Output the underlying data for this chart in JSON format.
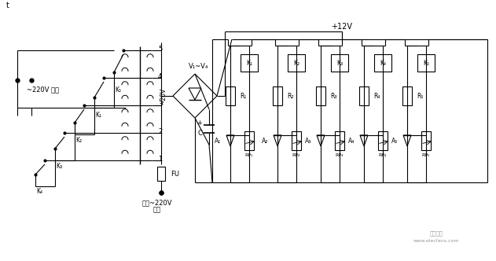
{
  "bg_color": "#ffffff",
  "fig_width": 6.31,
  "fig_height": 3.32,
  "dpi": 100,
  "watermark_line1": "时发发发",
  "watermark_line2": "www.elecfans.com",
  "label_plus12V": "+12V",
  "label_220V_out": "~220V 输出",
  "label_mains_line1": "市电~220V",
  "label_mains_line2": "输入",
  "label_FU": "FU",
  "label_C": "C",
  "label_20V": "~20V",
  "label_V1V4": "V₁~V₄",
  "relay_labels": [
    "K₁",
    "K₂",
    "K₃",
    "K₄",
    "K₅"
  ],
  "R_labels": [
    "R₁",
    "R₂",
    "R₃",
    "R₄",
    "R₅"
  ],
  "RP_labels": [
    "RP₁",
    "RP₂",
    "RP₃",
    "RP₄",
    "RP₅"
  ],
  "A_labels": [
    "A₁",
    "A₂",
    "A₃",
    "A₄",
    "A₅"
  ],
  "tap_labels": [
    "1",
    "2",
    "3",
    "4",
    "5"
  ],
  "K_left_labels": [
    "K₅",
    "K₁",
    "K₂",
    "K₃",
    "K₄"
  ]
}
